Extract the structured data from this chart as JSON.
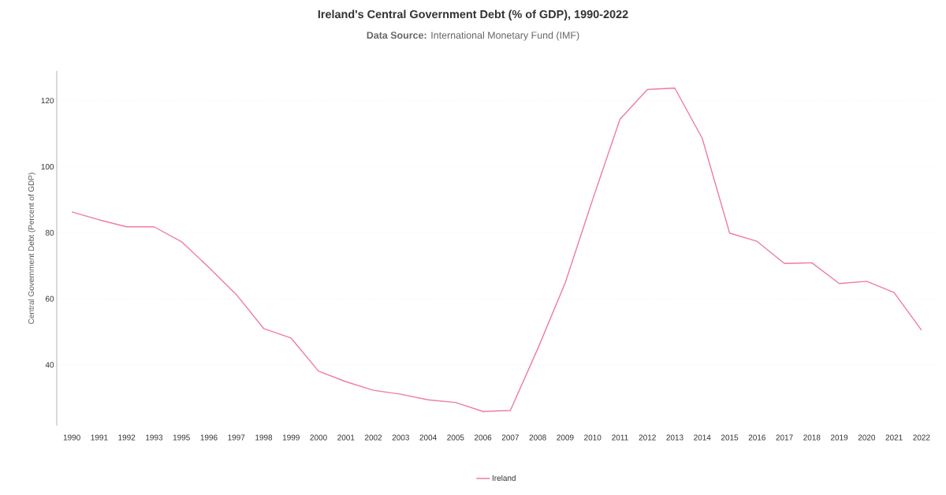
{
  "chart_data": {
    "type": "line",
    "title": "Ireland's Central Government Debt (% of GDP), 1990-2022",
    "subtitle": "**Data Source:** International Monetary Fund (IMF)",
    "ylabel": "Central Government Debt (Percent of GDP)",
    "categories": [
      "1990",
      "1991",
      "1992",
      "1993",
      "1995",
      "1996",
      "1997",
      "1998",
      "1999",
      "2000",
      "2001",
      "2002",
      "2003",
      "2004",
      "2005",
      "2006",
      "2007",
      "2008",
      "2009",
      "2010",
      "2011",
      "2012",
      "2013",
      "2014",
      "2015",
      "2016",
      "2017",
      "2018",
      "2019",
      "2020",
      "2021",
      "2022"
    ],
    "series": [
      {
        "name": "Ireland",
        "color": "#f07aa6",
        "values": [
          86.3,
          83.9,
          81.8,
          81.8,
          77.3,
          69.5,
          61.3,
          51.0,
          48.1,
          38.1,
          34.9,
          32.3,
          31.1,
          29.4,
          28.6,
          25.9,
          26.2,
          44.9,
          64.8,
          90.0,
          114.4,
          123.4,
          123.8,
          108.6,
          79.9,
          77.4,
          70.7,
          70.9,
          64.6,
          65.3,
          61.9,
          50.5
        ]
      }
    ],
    "ylim": [
      21.6,
      129
    ],
    "yticks": [
      40,
      60,
      80,
      100,
      120
    ],
    "grid": "y",
    "legend": "bottom",
    "marker": "none",
    "line_style": "solid"
  }
}
